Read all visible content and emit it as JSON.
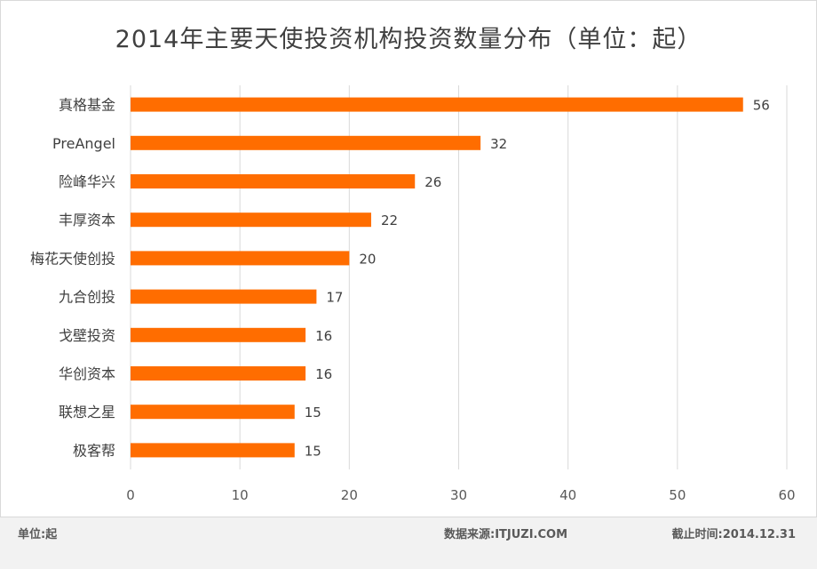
{
  "chart_data": {
    "type": "bar",
    "orientation": "horizontal",
    "title": "2014年主要天使投资机构投资数量分布（单位：起）",
    "categories": [
      "真格基金",
      "PreAngel",
      "险峰华兴",
      "丰厚资本",
      "梅花天使创投",
      "九合创投",
      "戈壁投资",
      "华创资本",
      "联想之星",
      "极客帮"
    ],
    "values": [
      56,
      32,
      26,
      22,
      20,
      17,
      16,
      16,
      15,
      15
    ],
    "xlim": [
      0,
      60
    ],
    "xticks": [
      "0",
      "10",
      "20",
      "30",
      "40",
      "50",
      "60"
    ],
    "grid": true,
    "bar_color": "#ff6d00"
  },
  "footer": {
    "unit": "单位:起",
    "source": "数据来源:ITJUZI.COM",
    "date": "截止时间:2014.12.31"
  }
}
